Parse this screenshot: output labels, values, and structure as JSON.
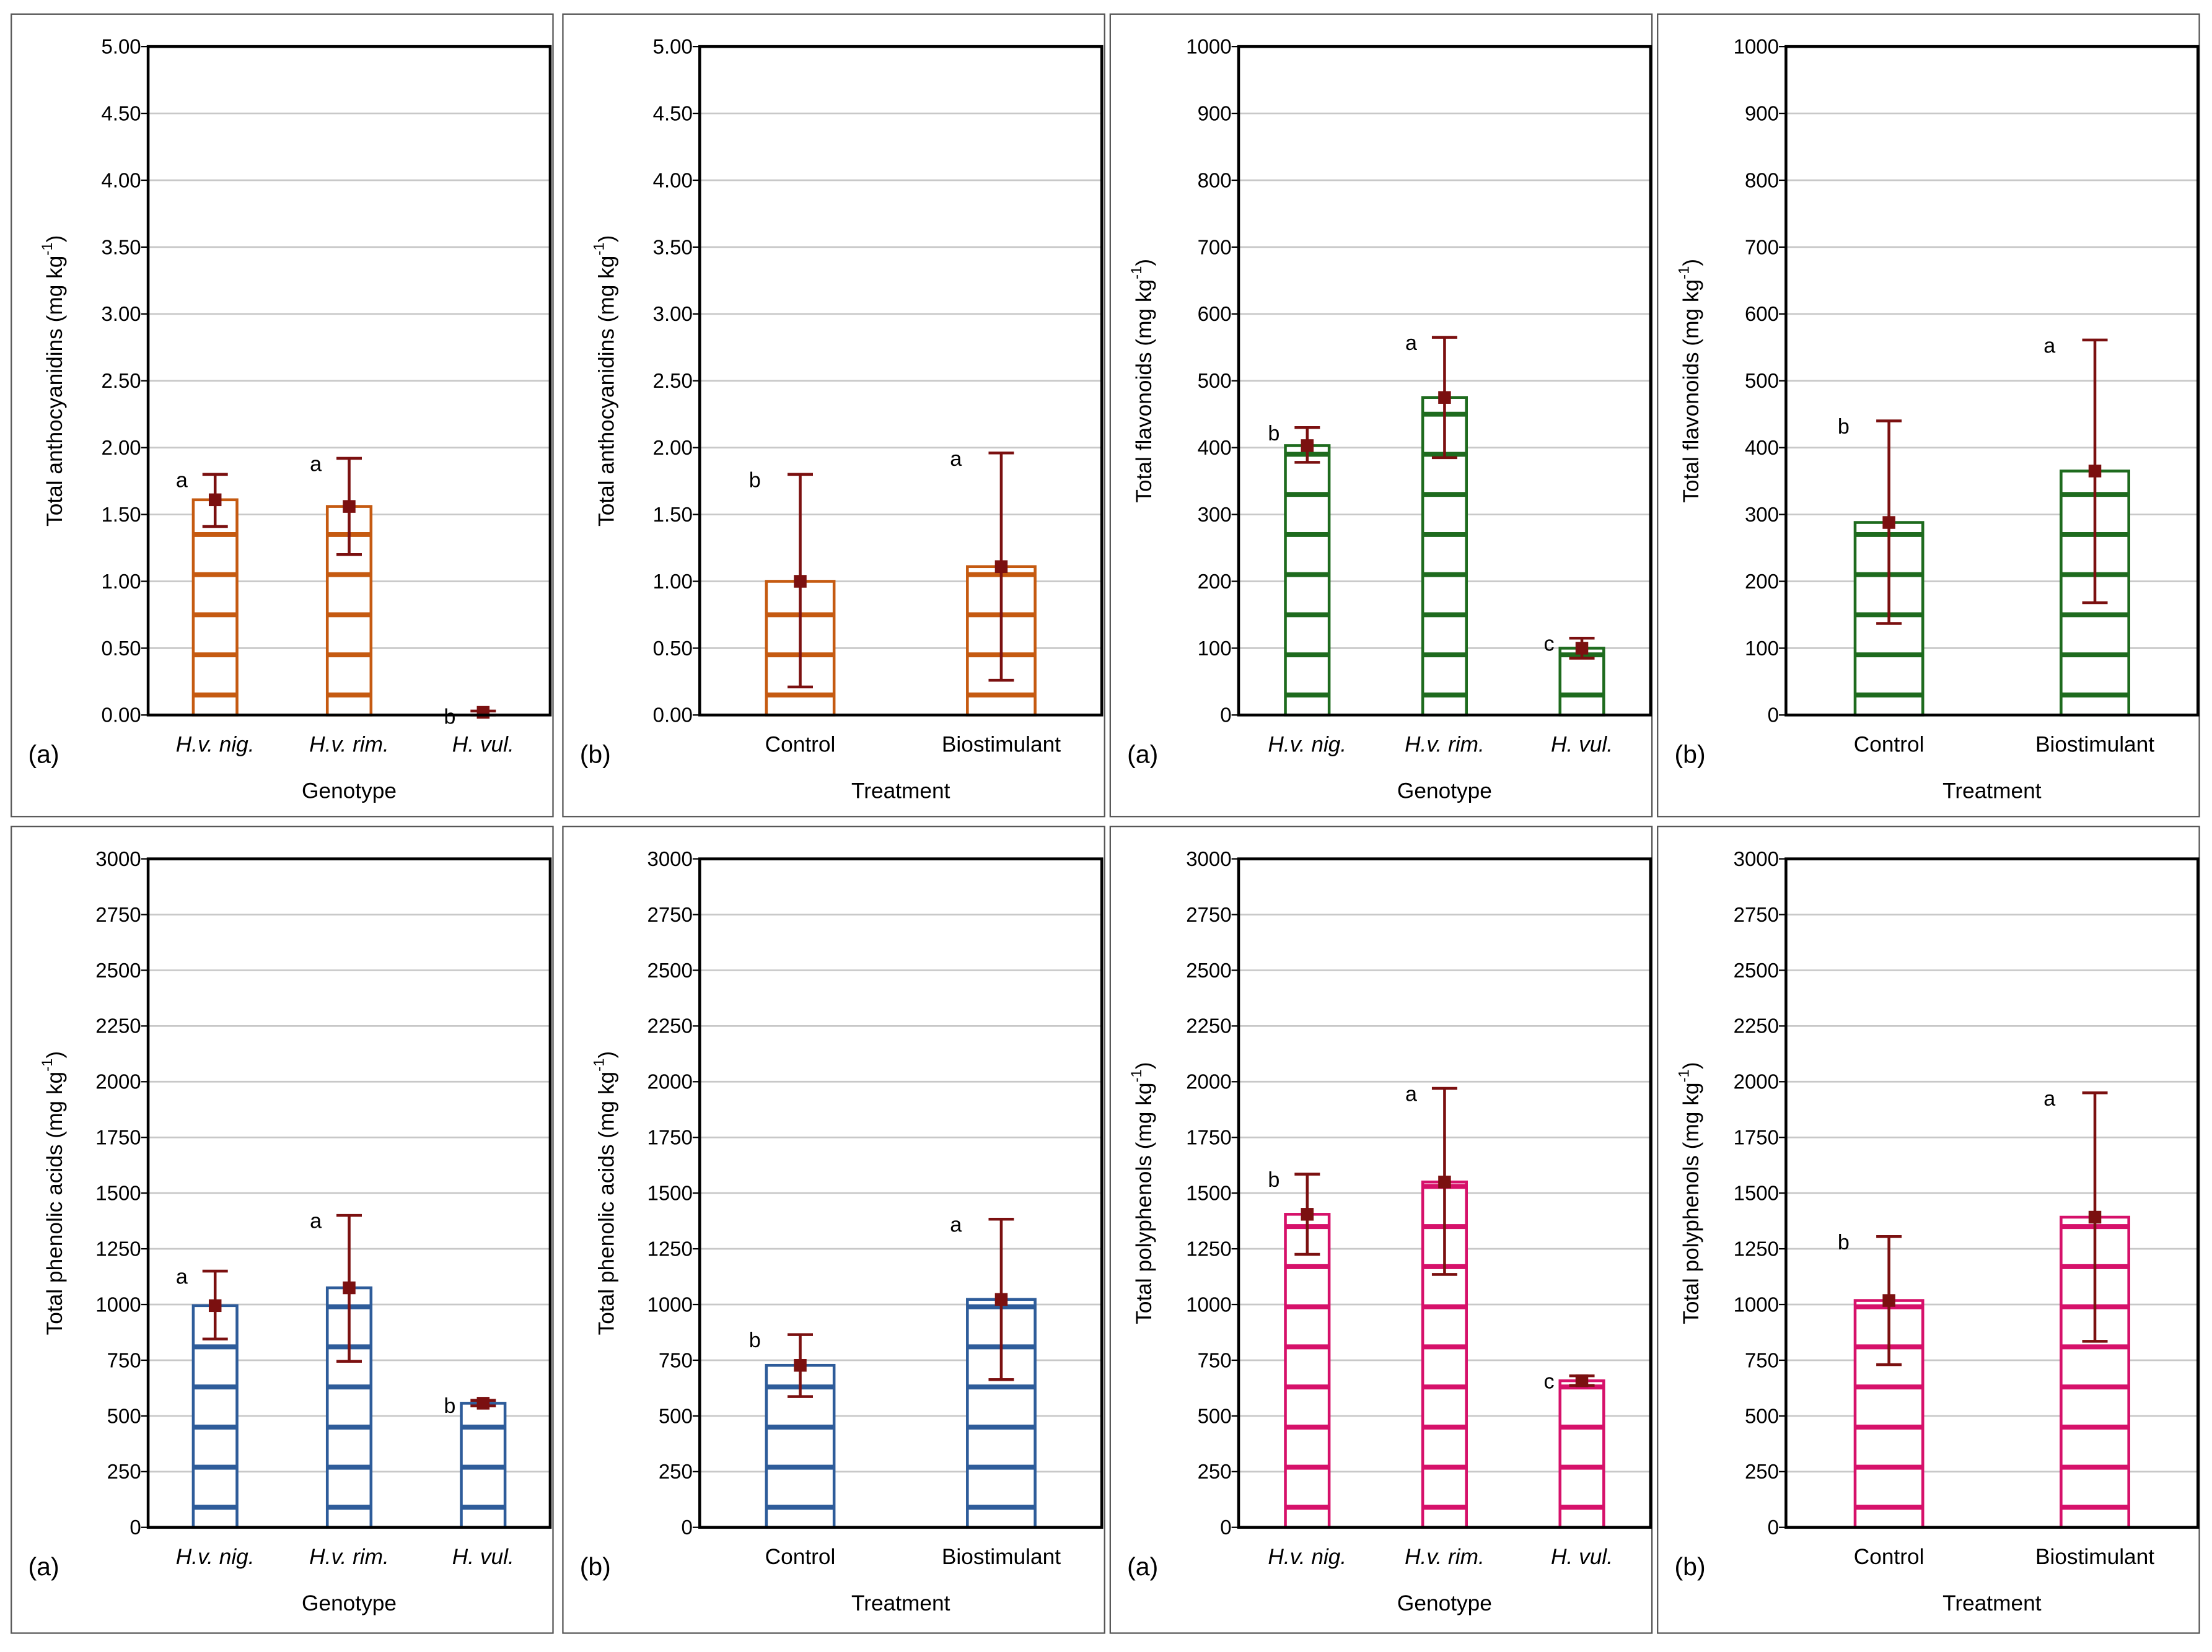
{
  "chart_data": [
    {
      "type": "bar",
      "panel_label": "(a)",
      "xlabel": "Genotype",
      "ylabel": "Total anthocyanidins (mg kg",
      "ylabel_sup": "-1",
      "ylabel_close": ")",
      "categories": [
        "H.v. nig.",
        "H.v. rim.",
        "H. vul."
      ],
      "italic_categories": true,
      "values": [
        1.61,
        1.56,
        0.02
      ],
      "error_low": [
        1.41,
        1.2,
        0.0
      ],
      "error_high": [
        1.8,
        1.92,
        0.03
      ],
      "letters": [
        "a",
        "a",
        "b"
      ],
      "ylim": [
        0,
        5
      ],
      "yticks": [
        "0.00",
        "0.50",
        "1.00",
        "1.50",
        "2.00",
        "2.50",
        "3.00",
        "3.50",
        "4.00",
        "4.50",
        "5.00"
      ],
      "color": "#C55A11",
      "grid": true
    },
    {
      "type": "bar",
      "panel_label": "(b)",
      "xlabel": "Treatment",
      "ylabel": "Total anthocyanidins (mg kg",
      "ylabel_sup": "-1",
      "ylabel_close": ")",
      "categories": [
        "Control",
        "Biostimulant"
      ],
      "italic_categories": false,
      "values": [
        1.0,
        1.11
      ],
      "error_low": [
        0.21,
        0.26
      ],
      "error_high": [
        1.8,
        1.96
      ],
      "letters": [
        "b",
        "a"
      ],
      "ylim": [
        0,
        5
      ],
      "yticks": [
        "0.00",
        "0.50",
        "1.00",
        "1.50",
        "2.00",
        "2.50",
        "3.00",
        "3.50",
        "4.00",
        "4.50",
        "5.00"
      ],
      "color": "#C55A11",
      "grid": true
    },
    {
      "type": "bar",
      "panel_label": "(a)",
      "xlabel": "Genotype",
      "ylabel": "Total flavonoids (mg kg",
      "ylabel_sup": "-1",
      "ylabel_close": ")",
      "categories": [
        "H.v. nig.",
        "H.v. rim.",
        "H. vul."
      ],
      "italic_categories": true,
      "values": [
        403,
        475,
        100
      ],
      "error_low": [
        378,
        385,
        85
      ],
      "error_high": [
        430,
        565,
        115
      ],
      "letters": [
        "b",
        "a",
        "c"
      ],
      "ylim": [
        0,
        1000
      ],
      "yticks": [
        "0",
        "100",
        "200",
        "300",
        "400",
        "500",
        "600",
        "700",
        "800",
        "900",
        "1000"
      ],
      "color": "#1E6B1E",
      "grid": true
    },
    {
      "type": "bar",
      "panel_label": "(b)",
      "xlabel": "Treatment",
      "ylabel": "Total flavonoids (mg kg",
      "ylabel_sup": "-1",
      "ylabel_close": ")",
      "categories": [
        "Control",
        "Biostimulant"
      ],
      "italic_categories": false,
      "values": [
        288,
        365
      ],
      "error_low": [
        137,
        168
      ],
      "error_high": [
        440,
        561
      ],
      "letters": [
        "b",
        "a"
      ],
      "ylim": [
        0,
        1000
      ],
      "yticks": [
        "0",
        "100",
        "200",
        "300",
        "400",
        "500",
        "600",
        "700",
        "800",
        "900",
        "1000"
      ],
      "color": "#1E6B1E",
      "grid": true
    },
    {
      "type": "bar",
      "panel_label": "(a)",
      "xlabel": "Genotype",
      "ylabel": "Total phenolic acids (mg kg",
      "ylabel_sup": "-1",
      "ylabel_close": ")",
      "categories": [
        "H.v. nig.",
        "H.v. rim.",
        "H. vul."
      ],
      "italic_categories": true,
      "values": [
        995,
        1075,
        557
      ],
      "error_low": [
        845,
        745,
        545
      ],
      "error_high": [
        1150,
        1400,
        570
      ],
      "letters": [
        "a",
        "a",
        "b"
      ],
      "ylim": [
        0,
        3000
      ],
      "yticks": [
        "0",
        "250",
        "500",
        "750",
        "1000",
        "1250",
        "1500",
        "1750",
        "2000",
        "2250",
        "2500",
        "2750",
        "3000"
      ],
      "color": "#2E5C9A",
      "grid": true
    },
    {
      "type": "bar",
      "panel_label": "(b)",
      "xlabel": "Treatment",
      "ylabel": "Total phenolic acids (mg kg",
      "ylabel_sup": "-1",
      "ylabel_close": ")",
      "categories": [
        "Control",
        "Biostimulant"
      ],
      "italic_categories": false,
      "values": [
        727,
        1023
      ],
      "error_low": [
        587,
        663
      ],
      "error_high": [
        865,
        1383
      ],
      "letters": [
        "b",
        "a"
      ],
      "ylim": [
        0,
        3000
      ],
      "yticks": [
        "0",
        "250",
        "500",
        "750",
        "1000",
        "1250",
        "1500",
        "1750",
        "2000",
        "2250",
        "2500",
        "2750",
        "3000"
      ],
      "color": "#2E5C9A",
      "grid": true
    },
    {
      "type": "bar",
      "panel_label": "(a)",
      "xlabel": "Genotype",
      "ylabel": "Total polyphenols (mg kg",
      "ylabel_sup": "-1",
      "ylabel_close": ")",
      "categories": [
        "H.v. nig.",
        "H.v. rim.",
        "H. vul."
      ],
      "italic_categories": true,
      "values": [
        1405,
        1550,
        658
      ],
      "error_low": [
        1225,
        1135,
        637
      ],
      "error_high": [
        1585,
        1970,
        680
      ],
      "letters": [
        "b",
        "a",
        "c"
      ],
      "ylim": [
        0,
        3000
      ],
      "yticks": [
        "0",
        "250",
        "500",
        "750",
        "1000",
        "1250",
        "1500",
        "1750",
        "2000",
        "2250",
        "2500",
        "2750",
        "3000"
      ],
      "color": "#D6116A",
      "grid": true
    },
    {
      "type": "bar",
      "panel_label": "(b)",
      "xlabel": "Treatment",
      "ylabel": "Total polyphenols (mg kg",
      "ylabel_sup": "-1",
      "ylabel_close": ")",
      "categories": [
        "Control",
        "Biostimulant"
      ],
      "italic_categories": false,
      "values": [
        1018,
        1392
      ],
      "error_low": [
        730,
        835
      ],
      "error_high": [
        1305,
        1950
      ],
      "letters": [
        "b",
        "a"
      ],
      "ylim": [
        0,
        3000
      ],
      "yticks": [
        "0",
        "250",
        "500",
        "750",
        "1000",
        "1250",
        "1500",
        "1750",
        "2000",
        "2250",
        "2500",
        "2750",
        "3000"
      ],
      "color": "#D6116A",
      "grid": true
    }
  ],
  "marker_color": "#7B1010",
  "grid_color": "#C8C8C8"
}
